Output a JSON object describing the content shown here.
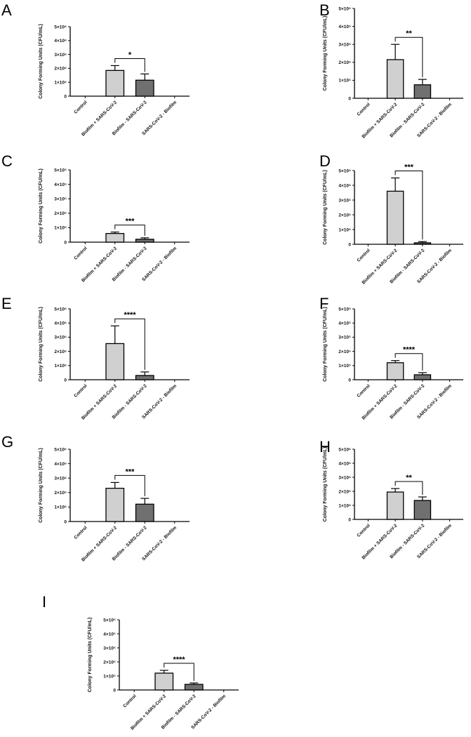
{
  "chart_data": [
    {
      "panel": "A",
      "type": "bar",
      "ylabel": "Colony Forming Units  (CFU/mL)",
      "exponent": 6,
      "yticks": [
        0,
        1,
        2,
        3,
        4,
        5
      ],
      "ylim": [
        0,
        5
      ],
      "categories": [
        "Control",
        "Biofilm + SARS-CoV-2",
        "Biofilm - SARS-CoV-2",
        "SARS-CoV-2 - Biofilm"
      ],
      "values": [
        0,
        1.85,
        1.15,
        0
      ],
      "errors": [
        0,
        0.35,
        0.45,
        0
      ],
      "significance": {
        "between": [
          1,
          2
        ],
        "label": "*"
      }
    },
    {
      "panel": "B",
      "type": "bar",
      "ylabel": "Colony Forming Units  (CFU/mL)",
      "exponent": 6,
      "yticks": [
        0,
        1,
        2,
        3,
        4,
        5
      ],
      "ylim": [
        0,
        5
      ],
      "categories": [
        "Control",
        "Biofilm + SARS-CoV-2",
        "Biofilm - SARS-CoV-2",
        "SARS-CoV-2 - Biofilm"
      ],
      "values": [
        0,
        2.15,
        0.75,
        0
      ],
      "errors": [
        0,
        0.85,
        0.3,
        0
      ],
      "significance": {
        "between": [
          1,
          2
        ],
        "label": "**"
      }
    },
    {
      "panel": "C",
      "type": "bar",
      "ylabel": "Colony Forming Units  (CFU/mL)",
      "exponent": 5,
      "yticks": [
        0,
        1,
        2,
        3,
        4,
        5
      ],
      "ylim": [
        0,
        5
      ],
      "categories": [
        "Control",
        "Biofilm + SARS-CoV-2",
        "Biofilm - SARS-CoV-2",
        "SARS-CoV-2 - Biofilm"
      ],
      "values": [
        0,
        0.6,
        0.2,
        0
      ],
      "errors": [
        0,
        0.1,
        0.1,
        0
      ],
      "significance": {
        "between": [
          1,
          2
        ],
        "label": "***"
      }
    },
    {
      "panel": "D",
      "type": "bar",
      "ylabel": "Colony Forming Units  (CFU/mL)",
      "exponent": 6,
      "yticks": [
        0,
        1,
        2,
        3,
        4,
        5
      ],
      "ylim": [
        0,
        5
      ],
      "categories": [
        "Control",
        "Biofilm + SARS-CoV-2",
        "Biofilm - SARS-CoV-2",
        "SARS-CoV-2 - Biofilm"
      ],
      "values": [
        0,
        3.6,
        0.1,
        0
      ],
      "errors": [
        0,
        0.9,
        0.08,
        0
      ],
      "significance": {
        "between": [
          1,
          2
        ],
        "label": "***"
      }
    },
    {
      "panel": "E",
      "type": "bar",
      "ylabel": "Colony Forming Units  (CFU/mL)",
      "exponent": 6,
      "yticks": [
        0,
        1,
        2,
        3,
        4,
        5
      ],
      "ylim": [
        0,
        5
      ],
      "categories": [
        "Control",
        "Biofilm + SARS-CoV-2",
        "Biofilm - SARS-CoV-2",
        "SARS-CoV-2 - Biofilm"
      ],
      "values": [
        0,
        2.55,
        0.3,
        0
      ],
      "errors": [
        0,
        1.25,
        0.25,
        0
      ],
      "significance": {
        "between": [
          1,
          2
        ],
        "label": "****"
      }
    },
    {
      "panel": "F",
      "type": "bar",
      "ylabel": "Colony Forming Units  (CFU/mL)",
      "exponent": 5,
      "yticks": [
        0,
        1,
        2,
        3,
        4,
        5
      ],
      "ylim": [
        0,
        5
      ],
      "categories": [
        "Control",
        "Biofilm + SARS-CoV-2",
        "Biofilm - SARS-CoV-2",
        "SARS-CoV-2 - Biofilm"
      ],
      "values": [
        0,
        1.2,
        0.35,
        0
      ],
      "errors": [
        0,
        0.15,
        0.15,
        0
      ],
      "significance": {
        "between": [
          1,
          2
        ],
        "label": "****"
      }
    },
    {
      "panel": "G",
      "type": "bar",
      "ylabel": "Colony Forming Units  (CFU/mL)",
      "exponent": 6,
      "yticks": [
        0,
        1,
        2,
        3,
        4,
        5
      ],
      "ylim": [
        0,
        5
      ],
      "categories": [
        "Control",
        "Biofilm + SARS-CoV-2",
        "Biofilm - SARS-CoV-2",
        "SARS-CoV-2 - Biofilm"
      ],
      "values": [
        0,
        2.3,
        1.2,
        0
      ],
      "errors": [
        0,
        0.4,
        0.4,
        0
      ],
      "significance": {
        "between": [
          1,
          2
        ],
        "label": "***"
      }
    },
    {
      "panel": "H",
      "type": "bar",
      "ylabel": "Colony Forming Units  (CFU/mL)",
      "exponent": 6,
      "yticks": [
        0,
        1,
        2,
        3,
        4,
        5
      ],
      "ylim": [
        0,
        5
      ],
      "categories": [
        "Control",
        "Biofilm + SARS-CoV-2",
        "Biofilm - SARS-CoV-2",
        "SARS-CoV-2 - Biofilm"
      ],
      "values": [
        0,
        1.95,
        1.35,
        0
      ],
      "errors": [
        0,
        0.25,
        0.25,
        0
      ],
      "significance": {
        "between": [
          1,
          2
        ],
        "label": "**"
      }
    },
    {
      "panel": "I",
      "type": "bar",
      "ylabel": "Colony Forming Units  (CFU/mL)",
      "exponent": 5,
      "yticks": [
        0,
        1,
        2,
        3,
        4,
        5
      ],
      "ylim": [
        0,
        5
      ],
      "categories": [
        "Control",
        "Biofilm + SARS-CoV-2",
        "Biofilm - SARS-CoV-2",
        "SARS-CoV-2 - Biofilm"
      ],
      "values": [
        0,
        1.2,
        0.4,
        0
      ],
      "errors": [
        0,
        0.2,
        0.1,
        0
      ],
      "significance": {
        "between": [
          1,
          2
        ],
        "label": "****"
      }
    }
  ],
  "colors": {
    "bar_light": "#d0d0d0",
    "bar_dark": "#707070",
    "axis": "#000000"
  }
}
